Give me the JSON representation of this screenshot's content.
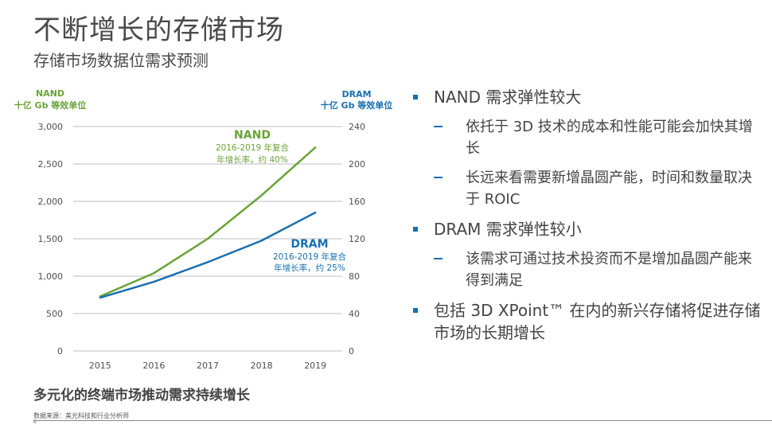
{
  "header": {
    "title": "不断增长的存储市场",
    "subtitle": "存储市场数据位需求预测"
  },
  "chart_data": {
    "type": "line",
    "categories": [
      "2015",
      "2016",
      "2017",
      "2018",
      "2019"
    ],
    "series": [
      {
        "name": "NAND",
        "axis": "left",
        "color": "#6aa338",
        "values": [
          730,
          1040,
          1500,
          2080,
          2720
        ]
      },
      {
        "name": "DRAM",
        "axis": "right",
        "color": "#1a6faf",
        "values": [
          57,
          74,
          95,
          118,
          148
        ]
      }
    ],
    "left_axis": {
      "title_line1": "NAND",
      "title_line2": "十亿 Gb 等效单位",
      "ticks": [
        "3,000",
        "2,500",
        "2,000",
        "1,500",
        "1,000",
        "500",
        "0"
      ],
      "ylim": [
        0,
        3000
      ]
    },
    "right_axis": {
      "title_line1": "DRAM",
      "title_line2": "十亿 Gb 等效单位",
      "ticks": [
        "240",
        "200",
        "160",
        "120",
        "80",
        "40",
        "0"
      ],
      "ylim": [
        0,
        240
      ]
    },
    "annotations": {
      "nand": {
        "name": "NAND",
        "line1": "2016-2019 年复合",
        "line2": "年增长率，约 40%"
      },
      "dram": {
        "name": "DRAM",
        "line1": "2016-2019 年复合",
        "line2": "年增长率，约 25%"
      }
    },
    "grid": true
  },
  "caption": "多元化的终端市场推动需求持续增长",
  "source": "数据来源：美光科技和行业分析师",
  "page_number": "6",
  "bullets": [
    {
      "level": 1,
      "text": "NAND 需求弹性较大"
    },
    {
      "level": 2,
      "text": "依托于 3D 技术的成本和性能可能会加快其增长"
    },
    {
      "level": 2,
      "text": "长远来看需要新增晶圆产能，时间和数量取决于 ROIC"
    },
    {
      "level": 1,
      "text": "DRAM 需求弹性较小"
    },
    {
      "level": 2,
      "text": "该需求可通过技术投资而不是增加晶圆产能来得到满足"
    },
    {
      "level": 1,
      "text": "包括 3D XPoint™ 在内的新兴存储将促进存储市场的长期增长"
    }
  ]
}
